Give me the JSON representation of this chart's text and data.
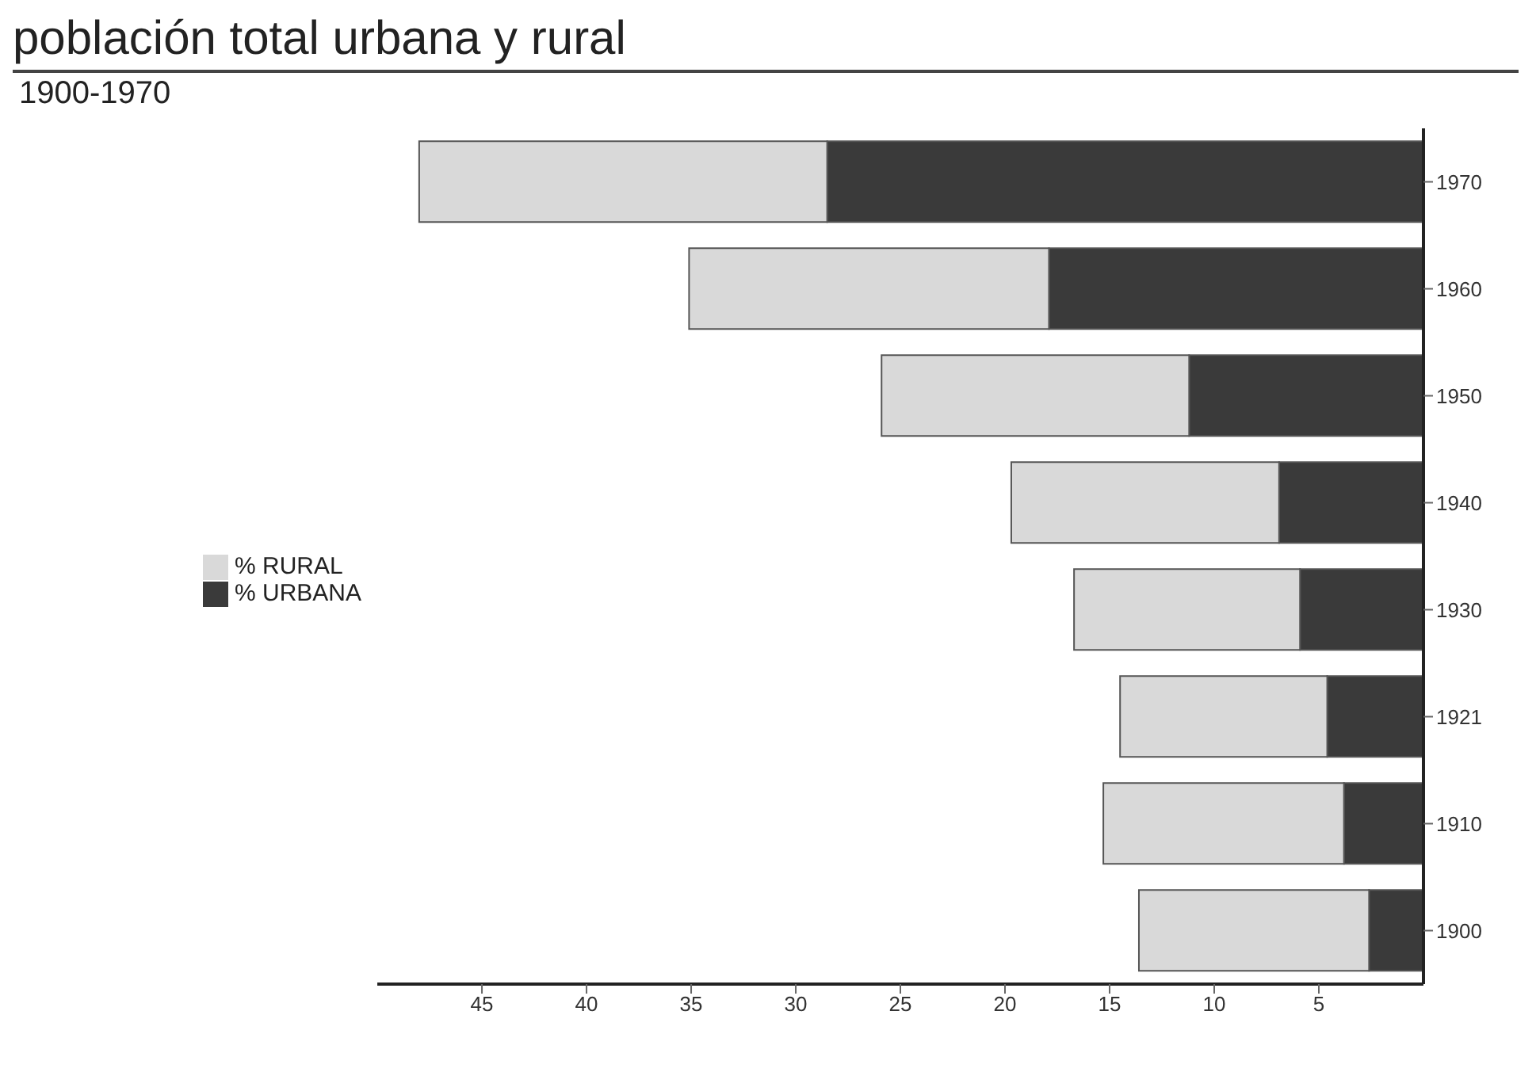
{
  "chart_data": {
    "type": "bar",
    "orientation": "horizontal",
    "stacked": true,
    "title": "población total urbana y rural",
    "subtitle": "1900-1970",
    "categories": [
      "1970",
      "1960",
      "1950",
      "1940",
      "1930",
      "1921",
      "1910",
      "1900"
    ],
    "series": [
      {
        "name": "% URBANA",
        "color": "#3a3a3a",
        "values": [
          28.5,
          17.9,
          11.2,
          6.9,
          5.9,
          4.6,
          3.8,
          2.6
        ]
      },
      {
        "name": "% RURAL",
        "color": "#d9d9d9",
        "values": [
          19.5,
          17.2,
          14.7,
          12.8,
          10.8,
          9.9,
          11.5,
          11.0
        ]
      }
    ],
    "xlim": [
      50,
      0
    ],
    "xticks": [
      45,
      40,
      35,
      30,
      25,
      20,
      15,
      10,
      5
    ],
    "legend": "left"
  }
}
